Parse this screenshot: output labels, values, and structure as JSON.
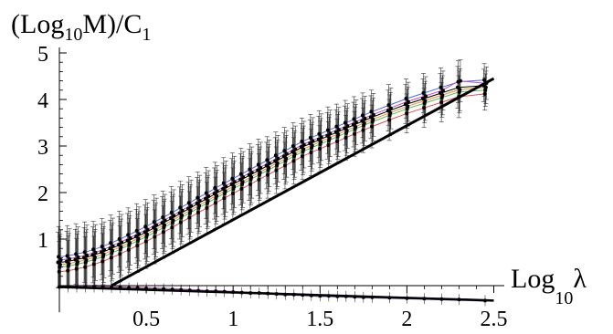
{
  "chart_data": {
    "type": "line",
    "ylabel": {
      "pre": "(Log",
      "sub": "10",
      "mid": "M)/C",
      "sub2": "1"
    },
    "xlabel": {
      "pre": "Log",
      "sub": "10",
      "post": "λ"
    },
    "xlim": [
      0,
      2.55
    ],
    "ylim": [
      -0.3,
      5
    ],
    "x_ticks": [
      0.5,
      1,
      1.5,
      2,
      2.5
    ],
    "x_tick_labels": [
      "0.5",
      "1",
      "1.5",
      "2",
      "2.5"
    ],
    "y_ticks": [
      1,
      2,
      3,
      4,
      5
    ],
    "y_tick_labels": [
      "1",
      "2",
      "3",
      "4",
      "5"
    ],
    "grid": false,
    "x": [
      0,
      0.05,
      0.1,
      0.15,
      0.2,
      0.25,
      0.3,
      0.35,
      0.4,
      0.45,
      0.5,
      0.55,
      0.6,
      0.65,
      0.7,
      0.75,
      0.8,
      0.85,
      0.9,
      0.95,
      1.0,
      1.05,
      1.1,
      1.15,
      1.2,
      1.25,
      1.3,
      1.35,
      1.4,
      1.45,
      1.5,
      1.55,
      1.6,
      1.65,
      1.7,
      1.75,
      1.8,
      1.9,
      2.0,
      2.1,
      2.2,
      2.3,
      2.45
    ],
    "series": [
      {
        "color": "#000000",
        "values": [
          0.5,
          0.52,
          0.56,
          0.6,
          0.66,
          0.72,
          0.8,
          0.88,
          0.97,
          1.06,
          1.15,
          1.25,
          1.35,
          1.45,
          1.56,
          1.66,
          1.77,
          1.87,
          1.98,
          2.08,
          2.18,
          2.28,
          2.38,
          2.48,
          2.58,
          2.68,
          2.78,
          2.88,
          2.98,
          3.06,
          3.14,
          3.22,
          3.3,
          3.38,
          3.46,
          3.54,
          3.62,
          3.76,
          3.9,
          4.02,
          4.14,
          4.26,
          4.3
        ]
      },
      {
        "color": "#4a6cd4",
        "values": [
          0.62,
          0.64,
          0.68,
          0.72,
          0.78,
          0.84,
          0.92,
          1.0,
          1.09,
          1.18,
          1.27,
          1.37,
          1.47,
          1.57,
          1.68,
          1.78,
          1.89,
          1.99,
          2.1,
          2.2,
          2.3,
          2.4,
          2.5,
          2.6,
          2.7,
          2.8,
          2.9,
          3.0,
          3.1,
          3.18,
          3.26,
          3.34,
          3.42,
          3.5,
          3.58,
          3.66,
          3.74,
          3.88,
          4.02,
          4.14,
          4.26,
          4.38,
          4.42
        ]
      },
      {
        "color": "#d9534f",
        "values": [
          0.3,
          0.32,
          0.36,
          0.4,
          0.46,
          0.52,
          0.6,
          0.68,
          0.77,
          0.86,
          0.95,
          1.05,
          1.15,
          1.25,
          1.36,
          1.46,
          1.57,
          1.67,
          1.78,
          1.88,
          1.98,
          2.08,
          2.18,
          2.28,
          2.38,
          2.48,
          2.58,
          2.68,
          2.78,
          2.86,
          2.94,
          3.02,
          3.1,
          3.18,
          3.26,
          3.34,
          3.42,
          3.56,
          3.7,
          3.82,
          3.94,
          4.06,
          4.12
        ]
      },
      {
        "color": "#5cb85c",
        "values": [
          0.4,
          0.42,
          0.46,
          0.5,
          0.56,
          0.62,
          0.7,
          0.78,
          0.87,
          0.96,
          1.05,
          1.15,
          1.25,
          1.35,
          1.46,
          1.56,
          1.67,
          1.77,
          1.88,
          1.98,
          2.08,
          2.18,
          2.28,
          2.38,
          2.48,
          2.58,
          2.68,
          2.78,
          2.88,
          2.96,
          3.04,
          3.12,
          3.2,
          3.28,
          3.36,
          3.44,
          3.52,
          3.66,
          3.8,
          3.92,
          4.04,
          4.16,
          4.2
        ]
      },
      {
        "color": "#e8913a",
        "values": [
          0.45,
          0.47,
          0.51,
          0.55,
          0.61,
          0.67,
          0.75,
          0.83,
          0.92,
          1.01,
          1.1,
          1.2,
          1.3,
          1.4,
          1.51,
          1.61,
          1.72,
          1.82,
          1.93,
          2.03,
          2.13,
          2.23,
          2.33,
          2.43,
          2.53,
          2.63,
          2.73,
          2.83,
          2.93,
          3.01,
          3.09,
          3.17,
          3.25,
          3.33,
          3.41,
          3.49,
          3.57,
          3.71,
          3.85,
          3.97,
          4.09,
          4.21,
          4.26
        ]
      },
      {
        "color": "#c04bc0",
        "values": [
          0.55,
          0.57,
          0.61,
          0.65,
          0.71,
          0.77,
          0.85,
          0.93,
          1.02,
          1.11,
          1.2,
          1.3,
          1.4,
          1.5,
          1.61,
          1.71,
          1.82,
          1.92,
          2.03,
          2.13,
          2.23,
          2.33,
          2.43,
          2.53,
          2.63,
          2.73,
          2.83,
          2.93,
          3.03,
          3.11,
          3.19,
          3.27,
          3.35,
          3.43,
          3.51,
          3.59,
          3.67,
          3.81,
          3.95,
          4.07,
          4.19,
          4.4,
          4.35
        ]
      }
    ],
    "error_bar_half_height": [
      0.65,
      0.65,
      0.65,
      0.65,
      0.6,
      0.6,
      0.6,
      0.6,
      0.58,
      0.58,
      0.58,
      0.58,
      0.56,
      0.56,
      0.56,
      0.56,
      0.55,
      0.55,
      0.55,
      0.55,
      0.55,
      0.55,
      0.55,
      0.55,
      0.5,
      0.5,
      0.5,
      0.5,
      0.5,
      0.5,
      0.5,
      0.5,
      0.48,
      0.48,
      0.48,
      0.48,
      0.46,
      0.44,
      0.42,
      0.42,
      0.42,
      0.45,
      0.35
    ],
    "fit_line": {
      "x": [
        0.3,
        2.5
      ],
      "y": [
        0,
        4.45
      ]
    },
    "lower_series": {
      "x": [
        0,
        0.05,
        0.1,
        0.15,
        0.2,
        0.25,
        0.3,
        0.35,
        0.4,
        0.45,
        0.5,
        0.55,
        0.6,
        0.65,
        0.7,
        0.75,
        0.8,
        0.85,
        0.9,
        0.95,
        1.0,
        1.05,
        1.1,
        1.15,
        1.2,
        1.25,
        1.3,
        1.35,
        1.4,
        1.45,
        1.5,
        1.55,
        1.6,
        1.65,
        1.7,
        1.75,
        1.8,
        1.9,
        2.0,
        2.1,
        2.2,
        2.3,
        2.45
      ],
      "values": [
        -0.03,
        -0.03,
        -0.03,
        -0.03,
        -0.03,
        -0.03,
        -0.04,
        -0.04,
        -0.05,
        -0.05,
        -0.06,
        -0.07,
        -0.07,
        -0.08,
        -0.09,
        -0.1,
        -0.11,
        -0.12,
        -0.12,
        -0.13,
        -0.14,
        -0.15,
        -0.16,
        -0.16,
        -0.17,
        -0.18,
        -0.19,
        -0.19,
        -0.2,
        -0.21,
        -0.22,
        -0.22,
        -0.23,
        -0.23,
        -0.24,
        -0.25,
        -0.25,
        -0.26,
        -0.27,
        -0.28,
        -0.29,
        -0.3,
        -0.32
      ],
      "fit_line": {
        "x": [
          0,
          2.5
        ],
        "y": [
          -0.03,
          -0.32
        ]
      },
      "colors": [
        "#4a6cd4",
        "#d9534f",
        "#5cb85c",
        "#c04bc0"
      ]
    }
  }
}
